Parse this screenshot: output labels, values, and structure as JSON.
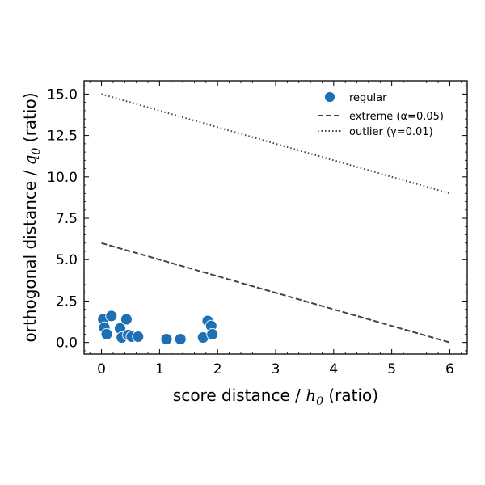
{
  "chart_data": {
    "type": "scatter",
    "xlabel": {
      "prefix": "score distance / ",
      "sym": "h",
      "sub": "0",
      "suffix": " (ratio)"
    },
    "ylabel": {
      "prefix": "orthogonal distance / ",
      "sym": "q",
      "sub": "0",
      "suffix": " (ratio)"
    },
    "xlim": [
      -0.3,
      6.3
    ],
    "ylim": [
      -0.7,
      15.8
    ],
    "xticks": [
      0,
      1,
      2,
      3,
      4,
      5,
      6
    ],
    "xtick_labels": [
      "0",
      "1",
      "2",
      "3",
      "4",
      "5",
      "6"
    ],
    "yticks": [
      0.0,
      2.5,
      5.0,
      7.5,
      10.0,
      12.5,
      15.0
    ],
    "ytick_labels": [
      "0.0",
      "2.5",
      "5.0",
      "7.5",
      "10.0",
      "12.5",
      "15.0"
    ],
    "x_minor_step": 0.2,
    "y_minor_step": 0.5,
    "grid": false,
    "legend_position": "top-right",
    "series": [
      {
        "name": "regular",
        "kind": "scatter",
        "color": "#1f6fb4",
        "points": [
          [
            0.03,
            1.4
          ],
          [
            0.05,
            0.9
          ],
          [
            0.09,
            0.5
          ],
          [
            0.17,
            1.6
          ],
          [
            0.32,
            0.85
          ],
          [
            0.35,
            0.3
          ],
          [
            0.43,
            1.4
          ],
          [
            0.46,
            0.45
          ],
          [
            0.52,
            0.35
          ],
          [
            0.63,
            0.35
          ],
          [
            1.12,
            0.2
          ],
          [
            1.36,
            0.2
          ],
          [
            1.75,
            0.3
          ],
          [
            1.83,
            1.3
          ],
          [
            1.89,
            1.0
          ],
          [
            1.91,
            0.5
          ]
        ]
      },
      {
        "name": "extreme (α=0.05)",
        "kind": "dashed-line",
        "color": "#444444",
        "points": [
          [
            0,
            6.0
          ],
          [
            6,
            0.0
          ]
        ]
      },
      {
        "name": "outlier (γ=0.01)",
        "kind": "dotted-line",
        "color": "#444444",
        "points": [
          [
            0,
            15.0
          ],
          [
            6,
            9.0
          ]
        ]
      }
    ]
  }
}
